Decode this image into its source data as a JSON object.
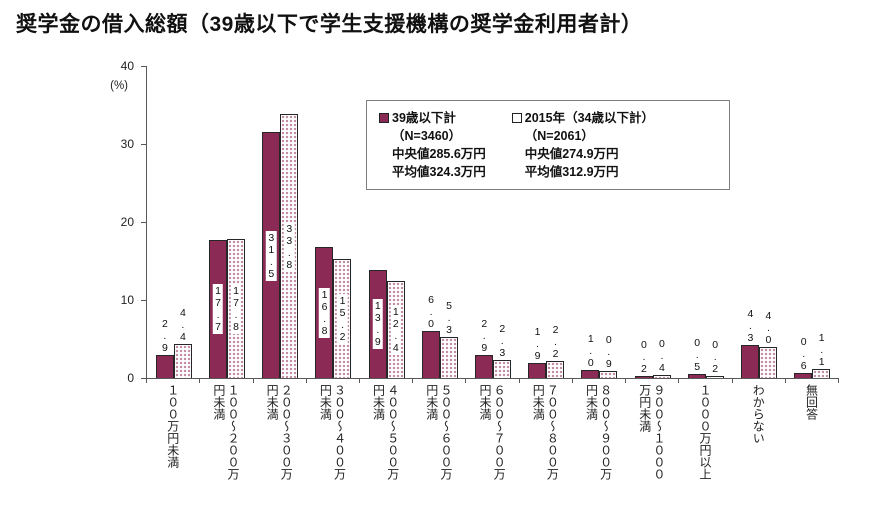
{
  "title": "奨学金の借入総額（39歳以下で学生支援機構の奨学金利用者計）",
  "colors": {
    "series1_fill": "#8B2A55",
    "series2_fill": "#FFFFFF",
    "series2_dots": "#8B2A55",
    "axis": "#595959",
    "text": "#1A1A1A"
  },
  "chart_data": {
    "type": "bar",
    "title": "奨学金の借入総額（39歳以下で学生支援機構の奨学金利用者計）",
    "ylabel": "(%)",
    "xlabel": "",
    "ylim": [
      0,
      40
    ],
    "yticks": [
      0,
      10,
      20,
      30,
      40
    ],
    "grid": false,
    "legend_position": "top-right-box",
    "categories": [
      "１００万円未満",
      "１００～２００万円未満",
      "２００～３００万円未満",
      "３００～４００万円未満",
      "４００～５００万円未満",
      "５００～６００万円未満",
      "６００～７００万円未満",
      "７００～８００万円未満",
      "８００～９００万円未満",
      "９００～１０００万円未満",
      "１０００万円以上",
      "わからない",
      "無回答"
    ],
    "series": [
      {
        "name": "39歳以下計",
        "legend_marker": "filled-square",
        "n_label": "（N=3460）",
        "median_label": "中央値285.6万円",
        "mean_label": "平均値324.3万円",
        "color": "#8B2A55",
        "values": [
          2.9,
          17.7,
          31.5,
          16.8,
          13.9,
          6.0,
          2.9,
          1.9,
          1.0,
          0.2,
          0.5,
          4.3,
          0.6
        ]
      },
      {
        "name": "2015年（34歳以下計）",
        "legend_marker": "open-square",
        "n_label": "（N=2061）",
        "median_label": "中央値274.9万円",
        "mean_label": "平均値312.9万円",
        "color": "#FFFFFF",
        "pattern": "dots",
        "values": [
          4.4,
          17.8,
          33.8,
          15.2,
          12.4,
          5.3,
          2.3,
          2.2,
          0.9,
          0.4,
          0.2,
          4.0,
          1.1
        ]
      }
    ]
  }
}
